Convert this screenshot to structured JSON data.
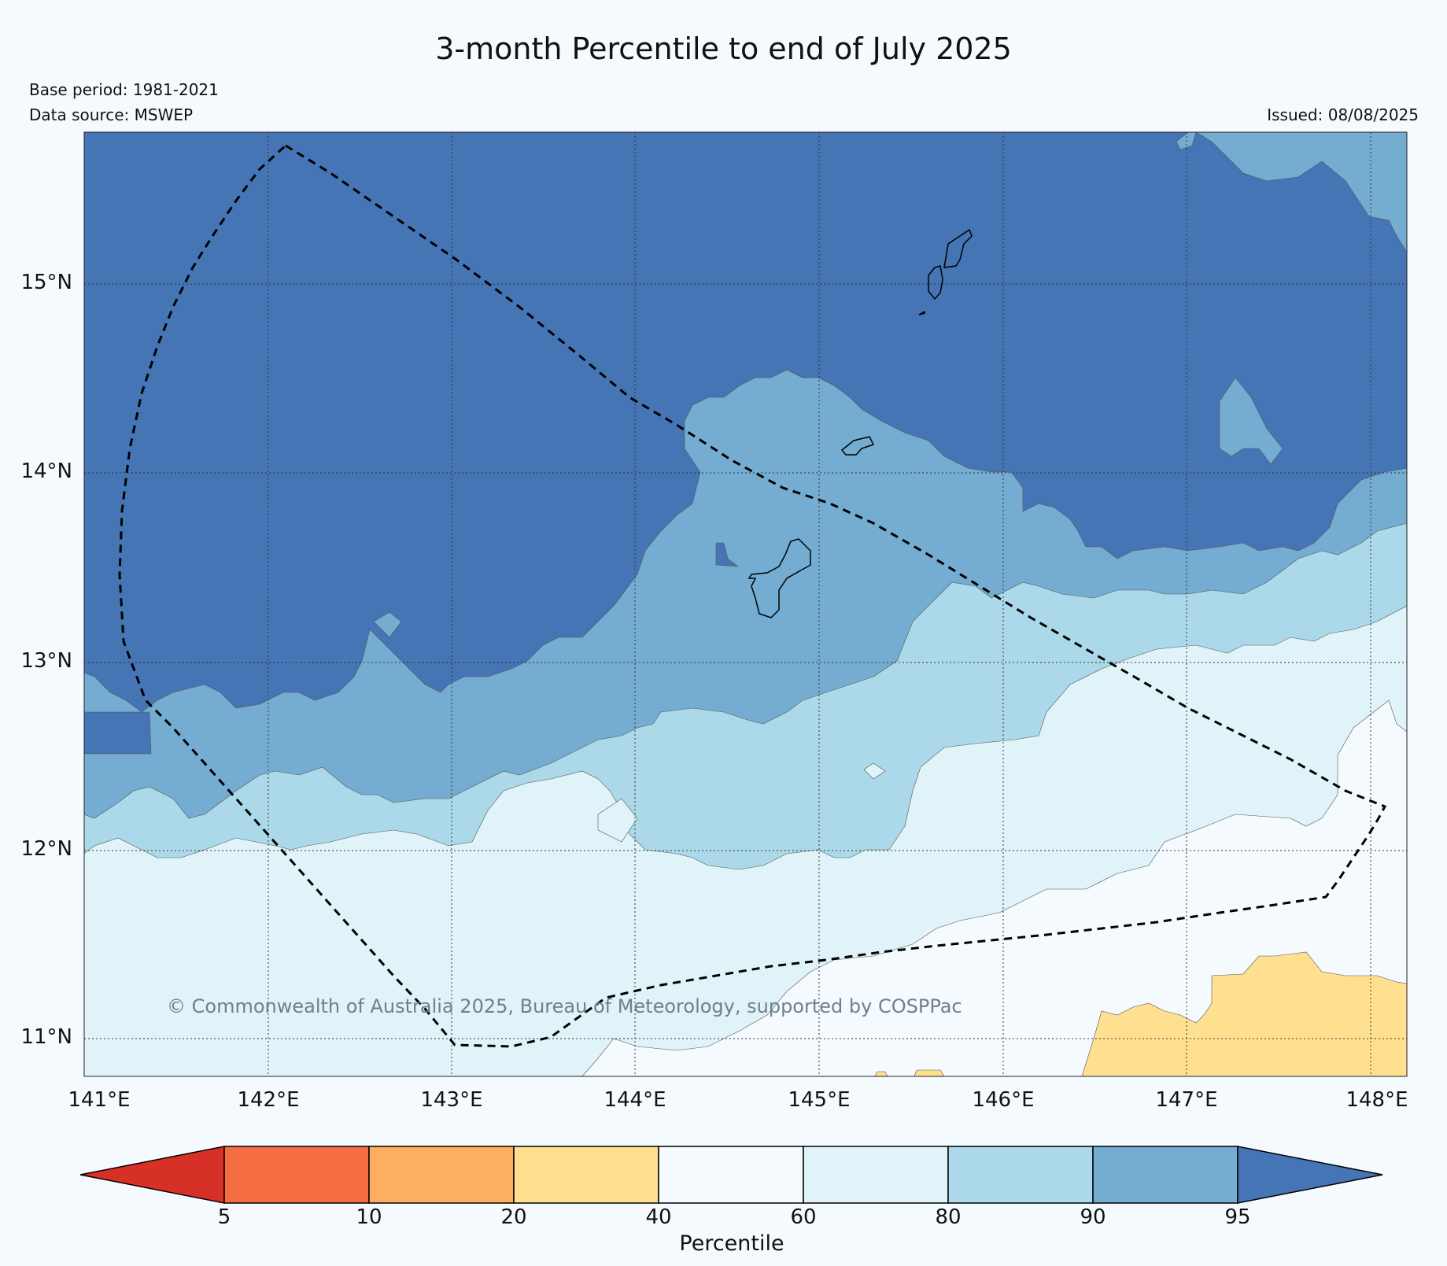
{
  "title": "3-month Percentile to end of July 2025",
  "base_period": "Base period: 1981-2021",
  "data_source": "Data source: MSWEP",
  "issued": "Issued: 08/08/2025",
  "copyright": "© Commonwealth of Australia 2025, Bureau of Meteorology, supported by COSPPac",
  "lat_labels": [
    "15°N",
    "14°N",
    "13°N",
    "12°N",
    "11°N"
  ],
  "lon_labels": [
    "141°E",
    "142°E",
    "143°E",
    "144°E",
    "145°E",
    "146°E",
    "147°E",
    "148°E"
  ],
  "colorbar": {
    "label": "Percentile",
    "ticks": [
      "5",
      "10",
      "20",
      "40",
      "60",
      "80",
      "90",
      "95"
    ],
    "colors": {
      "below_5": "#d73027",
      "5_10": "#f46d43",
      "10_20": "#fdae61",
      "20_40": "#fee090",
      "40_60": "#f4fafd",
      "60_80": "#e0f3f8",
      "80_90": "#abd9e9",
      "90_95": "#74add1",
      "above_95": "#4575b4"
    }
  }
}
